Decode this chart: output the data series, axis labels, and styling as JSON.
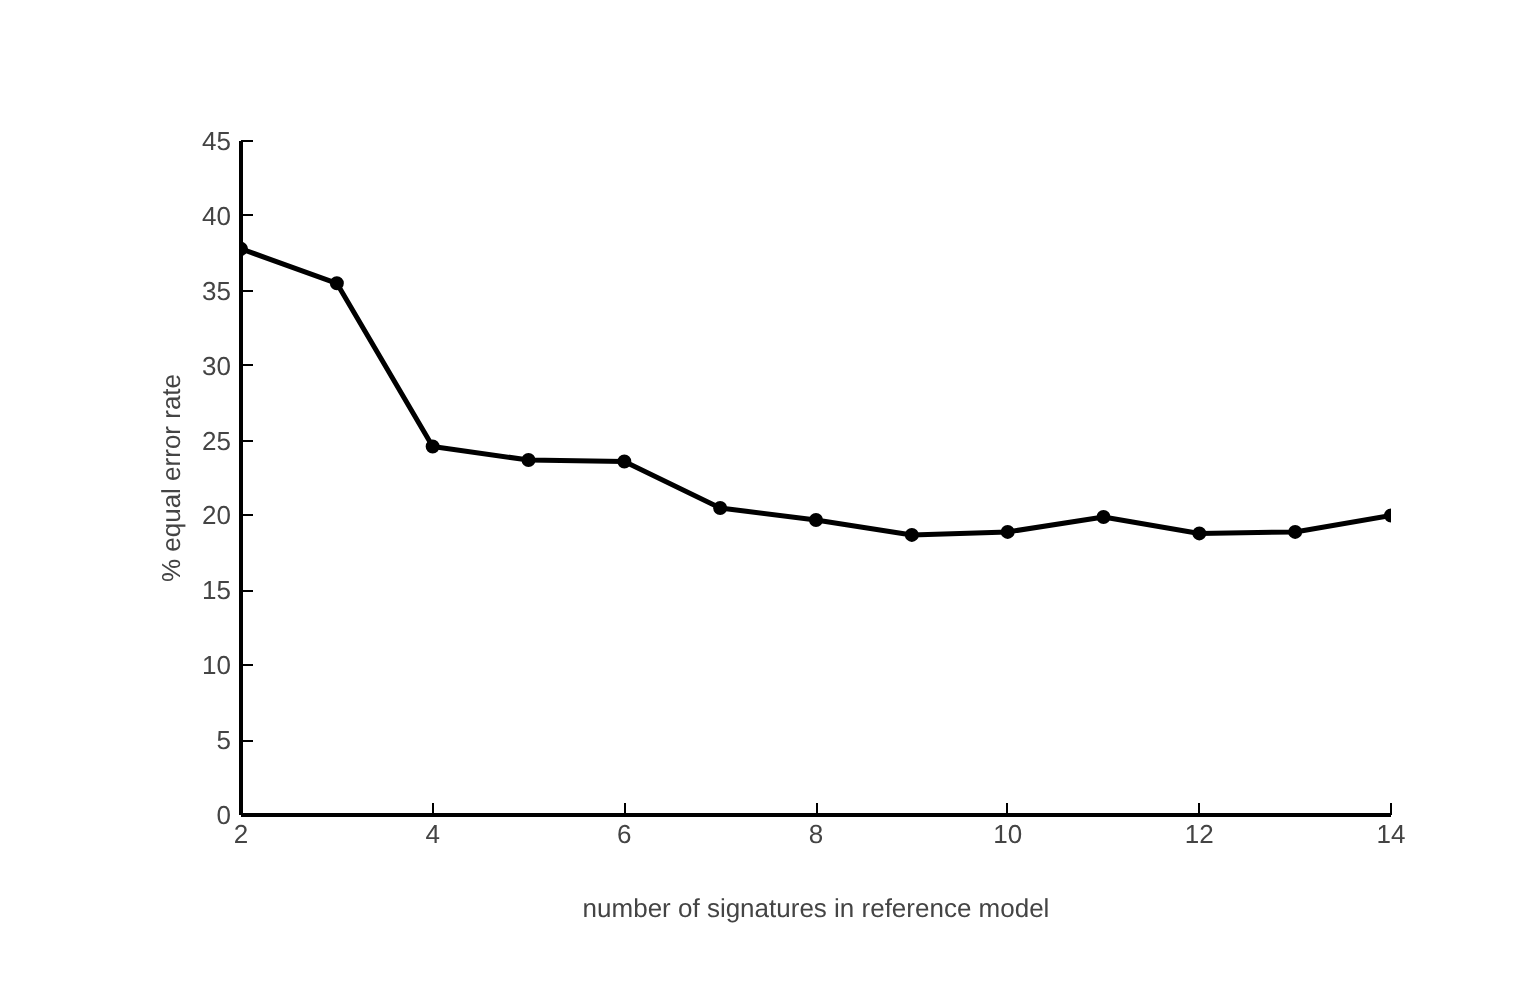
{
  "chart_data": {
    "type": "line",
    "xlabel": "number of signatures in reference model",
    "ylabel": "% equal error rate",
    "x": [
      2,
      3,
      4,
      5,
      6,
      7,
      8,
      9,
      10,
      11,
      12,
      13,
      14
    ],
    "series": [
      {
        "color": "#000000",
        "values": [
          37.8,
          35.5,
          24.6,
          23.7,
          23.6,
          20.5,
          19.7,
          18.7,
          18.9,
          19.9,
          18.8,
          18.9,
          20.0
        ]
      }
    ],
    "xlim": [
      2,
      14
    ],
    "xticks": [
      2,
      4,
      6,
      8,
      10,
      12,
      14
    ],
    "ylim": [
      0,
      45
    ],
    "yticks": [
      0,
      5,
      10,
      15,
      20,
      25,
      30,
      35,
      40,
      45
    ],
    "marker": "circle",
    "line_style": "solid"
  }
}
